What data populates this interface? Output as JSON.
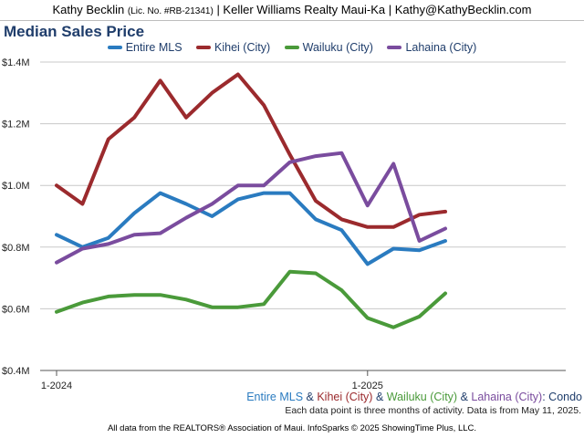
{
  "header": {
    "name": "Kathy Becklin",
    "license": "(Lic. No. #RB-21341)",
    "rest": "| Keller Williams Realty Maui-Ka | Kathy@KathyBecklin.com"
  },
  "subtitle": {
    "s1": "Entire MLS",
    "amp1": " & ",
    "s2": "Kihei (City)",
    "amp2": " & ",
    "s3": "Wailuku (City)",
    "amp3": " & ",
    "s4": "Lahaina (City)",
    "suffix": ": Condo"
  },
  "note": "Each data point is three months of activity. Data is from May 11, 2025.",
  "footer": "All data from the REALTORS® Association of Maui. InfoSparks © 2025 ShowingTime Plus, LLC.",
  "colors": {
    "entire_mls": "#2a7bc0",
    "kihei": "#9b2a2d",
    "wailuku": "#4a9a3a",
    "lahaina": "#7a4c9e",
    "title": "#1f3d6b"
  },
  "chart_data": {
    "type": "line",
    "title": "Median Sales Price",
    "xlabel": "",
    "ylabel": "",
    "x_tick_labels": [
      {
        "index": 0,
        "label": "1-2024"
      },
      {
        "index": 12,
        "label": "1-2025"
      }
    ],
    "y_ticks": [
      {
        "value": 0.4,
        "label": "$0.4M"
      },
      {
        "value": 0.6,
        "label": "$0.6M"
      },
      {
        "value": 0.8,
        "label": "$0.8M"
      },
      {
        "value": 1.0,
        "label": "$1.0M"
      },
      {
        "value": 1.2,
        "label": "$1.2M"
      },
      {
        "value": 1.4,
        "label": "$1.4M"
      }
    ],
    "ylim": [
      0.4,
      1.4
    ],
    "grid": "horizontal",
    "legend": "top",
    "units": "$M",
    "series": [
      {
        "name": "Entire MLS",
        "color": "#2a7bc0",
        "values": [
          0.84,
          0.8,
          0.83,
          0.91,
          0.975,
          0.94,
          0.9,
          0.955,
          0.975,
          0.975,
          0.89,
          0.855,
          0.745,
          0.795,
          0.79,
          0.82
        ]
      },
      {
        "name": "Kihei (City)",
        "color": "#9b2a2d",
        "values": [
          1.0,
          0.94,
          1.15,
          1.22,
          1.34,
          1.22,
          1.3,
          1.36,
          1.26,
          1.1,
          0.95,
          0.89,
          0.865,
          0.865,
          0.905,
          0.915
        ]
      },
      {
        "name": "Wailuku (City)",
        "color": "#4a9a3a",
        "values": [
          0.59,
          0.62,
          0.64,
          0.645,
          0.645,
          0.63,
          0.605,
          0.605,
          0.615,
          0.72,
          0.715,
          0.66,
          0.57,
          0.54,
          0.575,
          0.65
        ]
      },
      {
        "name": "Lahaina (City)",
        "color": "#7a4c9e",
        "values": [
          0.75,
          0.795,
          0.81,
          0.84,
          0.845,
          0.895,
          0.94,
          1.0,
          1.0,
          1.075,
          1.095,
          1.105,
          0.935,
          1.07,
          0.82,
          0.86
        ]
      }
    ]
  }
}
